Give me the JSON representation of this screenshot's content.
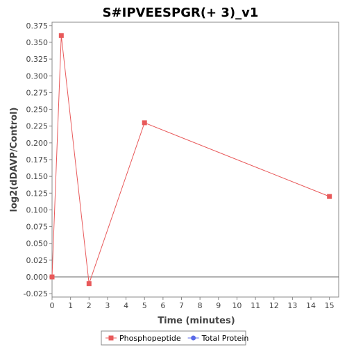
{
  "chart_data": {
    "type": "line",
    "title": "S#IPVEESPGR(+ 3)_v1",
    "xlabel": "Time (minutes)",
    "ylabel": "log2(dDAVP/Control)",
    "xlim": [
      0,
      15.5
    ],
    "ylim": [
      -0.03,
      0.38
    ],
    "xticks": [
      "0",
      "1",
      "2",
      "3",
      "4",
      "5",
      "6",
      "7",
      "8",
      "9",
      "10",
      "11",
      "12",
      "13",
      "14",
      "15"
    ],
    "yticks": [
      "-0.025",
      "0.000",
      "0.025",
      "0.050",
      "0.075",
      "0.100",
      "0.125",
      "0.150",
      "0.175",
      "0.200",
      "0.225",
      "0.250",
      "0.275",
      "0.300",
      "0.325",
      "0.350",
      "0.375"
    ],
    "grid": false,
    "legend_position": "bottom",
    "series": [
      {
        "name": "Phosphopeptide",
        "color": "#e8595a",
        "marker": "square",
        "x": [
          0,
          0.5,
          2,
          5,
          15
        ],
        "y": [
          0.0,
          0.36,
          -0.01,
          0.23,
          0.12
        ]
      },
      {
        "name": "Total Protein",
        "color": "#5a6ae8",
        "marker": "circle",
        "x": [],
        "y": []
      }
    ]
  }
}
